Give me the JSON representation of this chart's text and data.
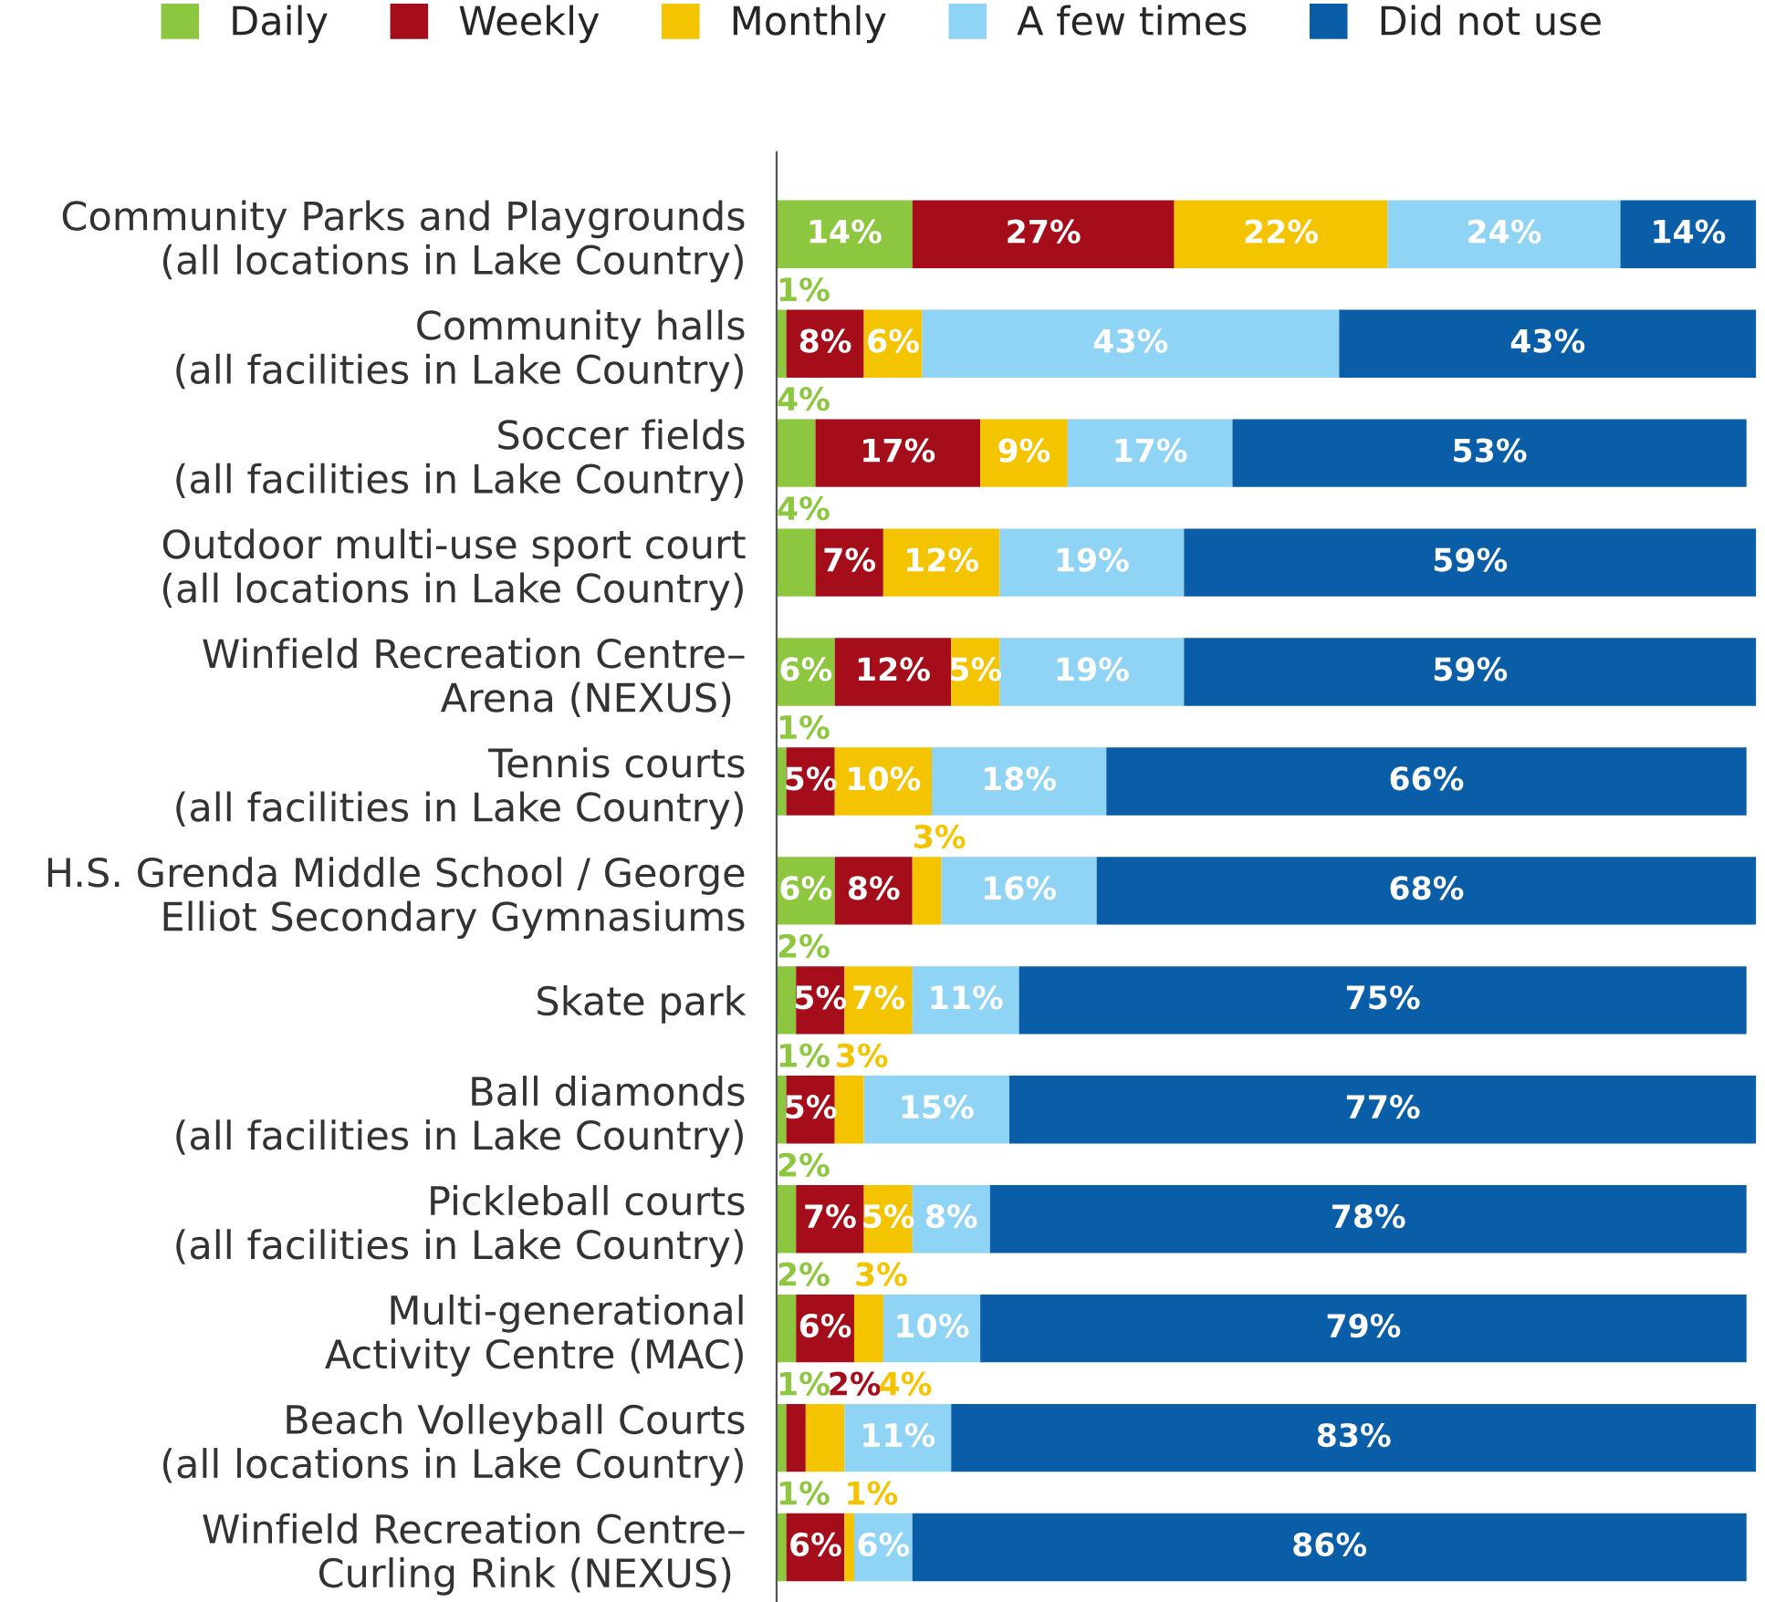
{
  "chart_data": {
    "type": "bar",
    "orientation": "horizontal",
    "stacked": true,
    "legend": "top",
    "grid": false,
    "tick_labels": "y",
    "categories": [
      "Community Parks and Playgrounds\n(all locations in Lake Country)",
      "Community halls\n(all facilities in Lake Country)",
      "Soccer fields\n(all facilities in Lake Country)",
      "Outdoor multi-use sport court\n(all locations in Lake Country)",
      "Winfield Recreation Centre–\nArena (NEXUS) ",
      "Tennis courts\n(all facilities in Lake Country)",
      "H.S. Grenda Middle School / George\nElliot Secondary Gymnasiums",
      "Skate park",
      "Ball diamonds\n(all facilities in Lake Country)",
      "Pickleball courts\n(all facilities in Lake Country)",
      "Multi-generational\nActivity Centre (MAC)",
      "Beach Volleyball Courts\n(all locations in Lake Country)",
      "Winfield Recreation Centre–\nCurling Rink (NEXUS) "
    ],
    "series": [
      {
        "name": "Daily",
        "color": "#8dc63f",
        "values": [
          14,
          1,
          4,
          4,
          6,
          1,
          6,
          2,
          1,
          2,
          2,
          1,
          1
        ],
        "value_labels": [
          "14%",
          "1%",
          "4%",
          "4%",
          "6%",
          "1%",
          "6%",
          "2%",
          "1%",
          "2%",
          "2%",
          "1%",
          "1%"
        ]
      },
      {
        "name": "Weekly",
        "color": "#a50d1a",
        "values": [
          27,
          8,
          17,
          7,
          12,
          5,
          8,
          5,
          5,
          7,
          6,
          2,
          6
        ],
        "value_labels": [
          "27%",
          "8%",
          "17%",
          "7%",
          "12%",
          "5%",
          "8%",
          "5%",
          "5%",
          "7%",
          "6%",
          "2%",
          "6%"
        ]
      },
      {
        "name": "Monthly",
        "color": "#f5c400",
        "values": [
          22,
          6,
          9,
          12,
          5,
          10,
          3,
          7,
          3,
          5,
          3,
          4,
          1
        ],
        "value_labels": [
          "22%",
          "6%",
          "9%",
          "12%",
          "5%",
          "10%",
          "3%",
          "7%",
          "3%",
          "5%",
          "3%",
          "4%",
          "1%"
        ]
      },
      {
        "name": "A few times",
        "color": "#8fd3f5",
        "values": [
          24,
          43,
          17,
          19,
          19,
          18,
          16,
          11,
          15,
          8,
          10,
          11,
          6
        ],
        "value_labels": [
          "24%",
          "43%",
          "17%",
          "19%",
          "19%",
          "18%",
          "16%",
          "11%",
          "15%",
          "8%",
          "10%",
          "11%",
          "6%"
        ]
      },
      {
        "name": "Did not use",
        "color": "#0a5ea8",
        "values": [
          14,
          43,
          53,
          59,
          59,
          66,
          68,
          75,
          77,
          78,
          79,
          83,
          86
        ],
        "value_labels": [
          "14%",
          "43%",
          "53%",
          "59%",
          "59%",
          "66%",
          "68%",
          "75%",
          "77%",
          "78%",
          "79%",
          "83%",
          "86%"
        ]
      }
    ]
  }
}
